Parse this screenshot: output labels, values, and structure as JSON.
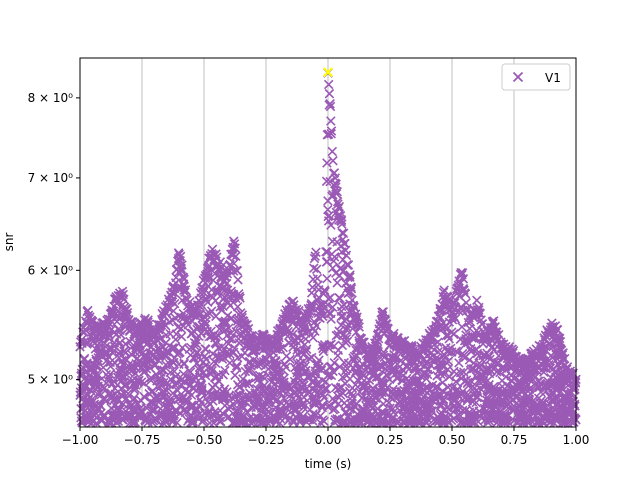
{
  "chart_data": {
    "type": "scatter",
    "xlabel": "time (s)",
    "ylabel": "snr",
    "xlim": [
      -1.0,
      1.0
    ],
    "ylim": [
      4.62,
      8.55
    ],
    "y_scale": "log",
    "x_ticks": [
      {
        "value": -1.0,
        "label": "−1.00"
      },
      {
        "value": -0.75,
        "label": "−0.75"
      },
      {
        "value": -0.5,
        "label": "−0.50"
      },
      {
        "value": -0.25,
        "label": "−0.25"
      },
      {
        "value": 0.0,
        "label": "0.00"
      },
      {
        "value": 0.25,
        "label": "0.25"
      },
      {
        "value": 0.5,
        "label": "0.50"
      },
      {
        "value": 0.75,
        "label": "0.75"
      },
      {
        "value": 1.0,
        "label": "1.00"
      }
    ],
    "y_ticks": [
      {
        "value": 5,
        "label": "5 × 10⁰"
      },
      {
        "value": 6,
        "label": "6 × 10⁰"
      },
      {
        "value": 7,
        "label": "7 × 10⁰"
      },
      {
        "value": 8,
        "label": "8 × 10⁰"
      }
    ],
    "grid": "vertical lines at x ticks",
    "legend_placement": "top-right",
    "colors": {
      "series": "#9b59b6",
      "peak": "#ffff00",
      "grid": "#b0b0b0"
    },
    "series": [
      {
        "name": "V1",
        "marker": "x",
        "envelope": [
          {
            "x": -1.0,
            "y": 5.3
          },
          {
            "x": -0.97,
            "y": 5.6
          },
          {
            "x": -0.93,
            "y": 5.45
          },
          {
            "x": -0.89,
            "y": 5.5
          },
          {
            "x": -0.86,
            "y": 5.7
          },
          {
            "x": -0.83,
            "y": 5.8
          },
          {
            "x": -0.8,
            "y": 5.5
          },
          {
            "x": -0.77,
            "y": 5.45
          },
          {
            "x": -0.73,
            "y": 5.55
          },
          {
            "x": -0.7,
            "y": 5.4
          },
          {
            "x": -0.66,
            "y": 5.6
          },
          {
            "x": -0.62,
            "y": 5.85
          },
          {
            "x": -0.6,
            "y": 6.25
          },
          {
            "x": -0.57,
            "y": 5.7
          },
          {
            "x": -0.53,
            "y": 5.6
          },
          {
            "x": -0.5,
            "y": 5.9
          },
          {
            "x": -0.47,
            "y": 6.2
          },
          {
            "x": -0.44,
            "y": 6.1
          },
          {
            "x": -0.41,
            "y": 5.9
          },
          {
            "x": -0.38,
            "y": 6.35
          },
          {
            "x": -0.35,
            "y": 5.6
          },
          {
            "x": -0.3,
            "y": 5.3
          },
          {
            "x": -0.26,
            "y": 5.4
          },
          {
            "x": -0.22,
            "y": 5.3
          },
          {
            "x": -0.18,
            "y": 5.55
          },
          {
            "x": -0.14,
            "y": 5.7
          },
          {
            "x": -0.1,
            "y": 5.5
          },
          {
            "x": -0.07,
            "y": 5.7
          },
          {
            "x": -0.05,
            "y": 6.2
          },
          {
            "x": -0.03,
            "y": 5.6
          },
          {
            "x": -0.01,
            "y": 5.9
          },
          {
            "x": 0.0,
            "y": 8.3
          },
          {
            "x": 0.01,
            "y": 7.9
          },
          {
            "x": 0.02,
            "y": 7.2
          },
          {
            "x": 0.04,
            "y": 6.8
          },
          {
            "x": 0.06,
            "y": 6.4
          },
          {
            "x": 0.08,
            "y": 6.1
          },
          {
            "x": 0.1,
            "y": 5.7
          },
          {
            "x": 0.13,
            "y": 5.4
          },
          {
            "x": 0.16,
            "y": 5.2
          },
          {
            "x": 0.19,
            "y": 5.3
          },
          {
            "x": 0.22,
            "y": 5.6
          },
          {
            "x": 0.25,
            "y": 5.4
          },
          {
            "x": 0.28,
            "y": 5.35
          },
          {
            "x": 0.32,
            "y": 5.3
          },
          {
            "x": 0.36,
            "y": 5.25
          },
          {
            "x": 0.4,
            "y": 5.35
          },
          {
            "x": 0.44,
            "y": 5.5
          },
          {
            "x": 0.47,
            "y": 5.8
          },
          {
            "x": 0.5,
            "y": 5.6
          },
          {
            "x": 0.54,
            "y": 6.0
          },
          {
            "x": 0.57,
            "y": 5.5
          },
          {
            "x": 0.6,
            "y": 5.7
          },
          {
            "x": 0.63,
            "y": 5.4
          },
          {
            "x": 0.67,
            "y": 5.5
          },
          {
            "x": 0.7,
            "y": 5.3
          },
          {
            "x": 0.74,
            "y": 5.25
          },
          {
            "x": 0.78,
            "y": 5.15
          },
          {
            "x": 0.82,
            "y": 5.2
          },
          {
            "x": 0.86,
            "y": 5.3
          },
          {
            "x": 0.9,
            "y": 5.5
          },
          {
            "x": 0.93,
            "y": 5.4
          },
          {
            "x": 0.96,
            "y": 5.1
          },
          {
            "x": 1.0,
            "y": 5.0
          }
        ],
        "floor": 4.65,
        "peak": {
          "x": 0.0,
          "y": 8.35
        }
      }
    ]
  }
}
